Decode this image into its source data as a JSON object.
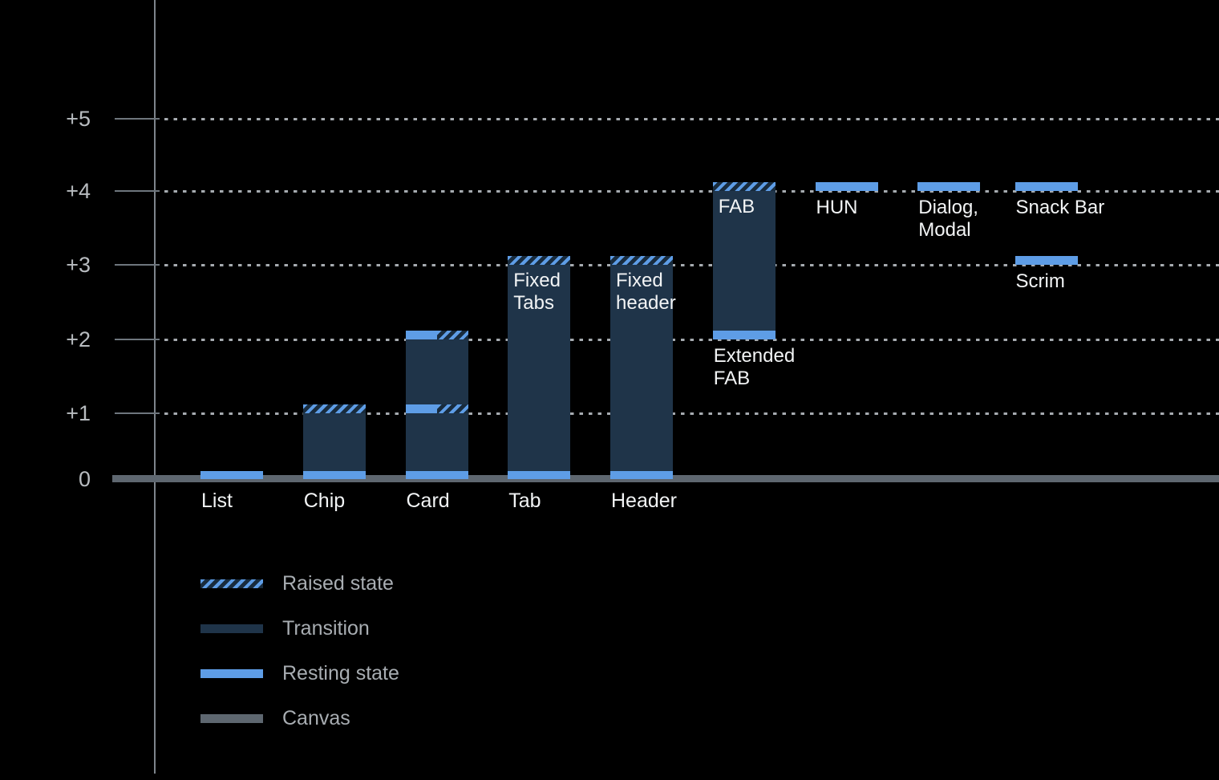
{
  "chart_data": {
    "type": "bar",
    "title": "",
    "description": "Elevation diagram of UI components (stacked elevation ranges in dp-like units)",
    "background": "#000000",
    "y_axis": {
      "ylim": [
        0,
        5.5
      ],
      "grid": "dotted horizontal lines at each tick from +1 to +5",
      "ticks": [
        {
          "value": 0,
          "label": "0"
        },
        {
          "value": 1,
          "label": "+1"
        },
        {
          "value": 2,
          "label": "+2"
        },
        {
          "value": 3,
          "label": "+3"
        },
        {
          "value": 4,
          "label": "+4"
        },
        {
          "value": 5,
          "label": "+5"
        }
      ]
    },
    "colors": {
      "resting": "#5E9DE6",
      "transition": "#1F3449",
      "raised_bg": "#182B3D",
      "canvas": "#5E6770",
      "axis_line": "#7E858C",
      "tick_line": "#6E767D",
      "grid_dot": "#A6ABB0",
      "tick_label": "#B8BCC0",
      "bar_label": "#F2F4F5",
      "legend_label": "#A8ADB2"
    },
    "bars": [
      {
        "id": "list",
        "slot": 0,
        "axis_label": "List",
        "segments": [
          {
            "kind": "resting",
            "from": 0,
            "to": 0.12
          }
        ]
      },
      {
        "id": "chip",
        "slot": 1,
        "axis_label": "Chip",
        "segments": [
          {
            "kind": "resting",
            "from": 0,
            "to": 0.12
          },
          {
            "kind": "transition",
            "from": 0.12,
            "to": 1
          },
          {
            "kind": "raised",
            "from": 1,
            "to": 1.12
          }
        ]
      },
      {
        "id": "card",
        "slot": 2,
        "axis_label": "Card",
        "segments": [
          {
            "kind": "resting",
            "from": 0,
            "to": 0.12
          },
          {
            "kind": "transition",
            "from": 0.12,
            "to": 1
          },
          {
            "kind": "split",
            "from": 1,
            "to": 1.12
          },
          {
            "kind": "transition",
            "from": 1.12,
            "to": 2
          },
          {
            "kind": "split",
            "from": 2,
            "to": 2.12
          }
        ]
      },
      {
        "id": "tab",
        "slot": 3,
        "axis_label": "Tab",
        "inner_label": [
          "Fixed",
          "Tabs"
        ],
        "segments": [
          {
            "kind": "resting",
            "from": 0,
            "to": 0.12
          },
          {
            "kind": "transition",
            "from": 0.12,
            "to": 3
          },
          {
            "kind": "raised",
            "from": 3,
            "to": 3.12
          }
        ]
      },
      {
        "id": "header",
        "slot": 4,
        "axis_label": "Header",
        "inner_label": [
          "Fixed",
          "header"
        ],
        "segments": [
          {
            "kind": "resting",
            "from": 0,
            "to": 0.12
          },
          {
            "kind": "transition",
            "from": 0.12,
            "to": 3
          },
          {
            "kind": "raised",
            "from": 3,
            "to": 3.12
          }
        ]
      },
      {
        "id": "fab",
        "slot": 5,
        "inner_label": [
          "FAB"
        ],
        "below_label": [
          "Extended",
          "FAB"
        ],
        "segments": [
          {
            "kind": "resting",
            "from": 2,
            "to": 2.12
          },
          {
            "kind": "transition",
            "from": 2.12,
            "to": 4
          },
          {
            "kind": "raised",
            "from": 4,
            "to": 4.12
          }
        ]
      },
      {
        "id": "hun",
        "slot": 6,
        "below_label": [
          "HUN"
        ],
        "segments": [
          {
            "kind": "resting",
            "from": 4,
            "to": 4.12
          }
        ]
      },
      {
        "id": "dialog-modal",
        "slot": 7,
        "below_label": [
          "Dialog,",
          "Modal"
        ],
        "segments": [
          {
            "kind": "resting",
            "from": 4,
            "to": 4.12
          }
        ]
      },
      {
        "id": "snack-bar",
        "slot": 8,
        "below_label": [
          "Snack Bar"
        ],
        "segments": [
          {
            "kind": "resting",
            "from": 4,
            "to": 4.12
          }
        ]
      },
      {
        "id": "scrim",
        "slot": 8,
        "below_label": [
          "Scrim"
        ],
        "segments": [
          {
            "kind": "resting",
            "from": 3,
            "to": 3.12
          }
        ]
      }
    ],
    "legend": [
      {
        "kind": "raised",
        "label": "Raised state"
      },
      {
        "kind": "transition",
        "label": "Transition"
      },
      {
        "kind": "resting",
        "label": "Resting state"
      },
      {
        "kind": "canvas",
        "label": "Canvas"
      }
    ]
  }
}
